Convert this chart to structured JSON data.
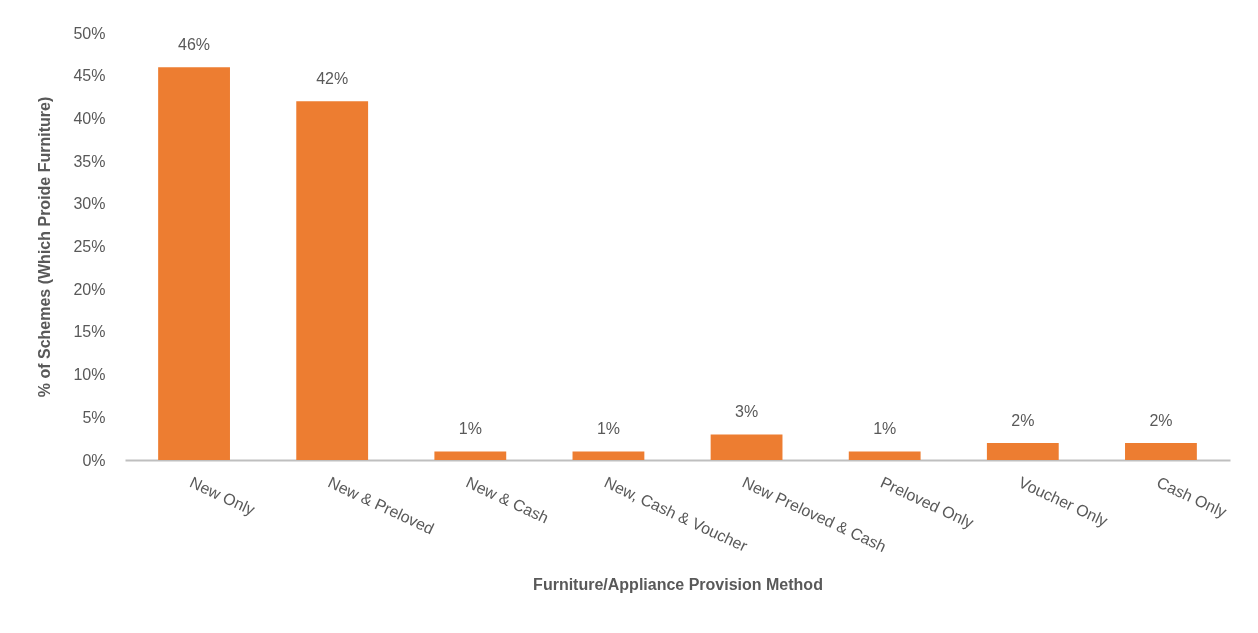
{
  "chart_data": {
    "type": "bar",
    "xlabel": "Furniture/Appliance Provision Method",
    "ylabel": "% of Schemes (Which Proide Furniture)",
    "categories": [
      "New Only",
      "New & Preloved",
      "New & Cash",
      "New, Cash & Voucher",
      "New Preloved & Cash",
      "Preloved Only",
      "Voucher Only",
      "Cash Only"
    ],
    "values": [
      46,
      42,
      1,
      1,
      3,
      1,
      2,
      2
    ],
    "color": "#ed7d31",
    "value_labels": [
      "46%",
      "42%",
      "1%",
      "1%",
      "3%",
      "1%",
      "2%",
      "2%"
    ],
    "ylim": [
      0,
      50
    ],
    "yticks": [
      {
        "value": 0,
        "label": "0%"
      },
      {
        "value": 5,
        "label": "5%"
      },
      {
        "value": 10,
        "label": "10%"
      },
      {
        "value": 15,
        "label": "15%"
      },
      {
        "value": 20,
        "label": "20%"
      },
      {
        "value": 25,
        "label": "25%"
      },
      {
        "value": 30,
        "label": "30%"
      },
      {
        "value": 35,
        "label": "35%"
      },
      {
        "value": 40,
        "label": "40%"
      },
      {
        "value": 45,
        "label": "45%"
      },
      {
        "value": 50,
        "label": "50%"
      }
    ],
    "grid": false
  }
}
